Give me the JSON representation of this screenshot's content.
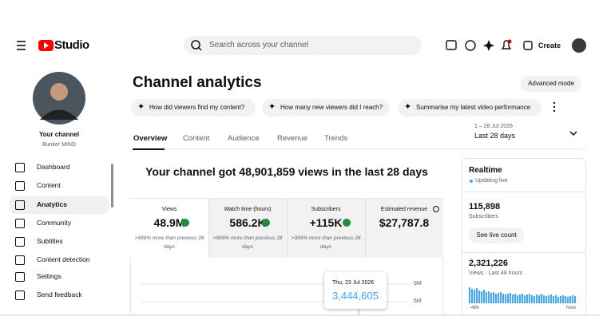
{
  "header": {
    "logo": "Studio",
    "search_placeholder": "Search across your channel",
    "create": "Create"
  },
  "channel": {
    "name": "Your channel",
    "handle": "Bunker MIND"
  },
  "nav": {
    "items": [
      "Dashboard",
      "Content",
      "Analytics",
      "Community",
      "Subtitles",
      "Content detection",
      "Settings",
      "Send feedback"
    ],
    "active": 2
  },
  "page": {
    "title": "Channel analytics",
    "advanced_mode": "Advanced mode"
  },
  "chips": [
    "How did viewers find my content?",
    "How many new viewers did I reach?",
    "Summarise my latest video performance"
  ],
  "tabs": {
    "items": [
      "Overview",
      "Content",
      "Audience",
      "Revenue",
      "Trends"
    ],
    "active": 0
  },
  "date_range": {
    "dates": "1 – 28 Jul 2026",
    "label": "Last 28 days"
  },
  "headline": "Your channel got 48,901,859 views in the last 28 days",
  "metrics": [
    {
      "label": "Views",
      "value": "48.9M",
      "change": ">999% more than previous 28 days"
    },
    {
      "label": "Watch time (hours)",
      "value": "586.2K",
      "change": ">999% more than previous 28 days"
    },
    {
      "label": "Subscribers",
      "value": "+115K",
      "change": ">999% more than previous 28 days"
    },
    {
      "label": "Estimated revenue",
      "value": "$27,787.8"
    }
  ],
  "chart": {
    "tooltip_date": "Thu, 23 Jul 2026",
    "tooltip_value": "3,444,605",
    "y_labels": [
      "9M",
      "6M"
    ]
  },
  "realtime": {
    "title": "Realtime",
    "status": "Updating live",
    "subscribers": "115,898",
    "subscribers_label": "Subscribers",
    "button": "See live count",
    "views": "2,321,226",
    "views_label": "Views · Last 48 hours",
    "bars": [
      20,
      18,
      17,
      19,
      16,
      15,
      17,
      14,
      15,
      13,
      14,
      12,
      13,
      14,
      12,
      11,
      12,
      13,
      11,
      12,
      10,
      11,
      12,
      10,
      11,
      12,
      10,
      9,
      11,
      10,
      12,
      10,
      9,
      10,
      11,
      9,
      10,
      8,
      9,
      10,
      9,
      8,
      9,
      10,
      9
    ],
    "axis_start": "-48h",
    "axis_end": "Now"
  }
}
